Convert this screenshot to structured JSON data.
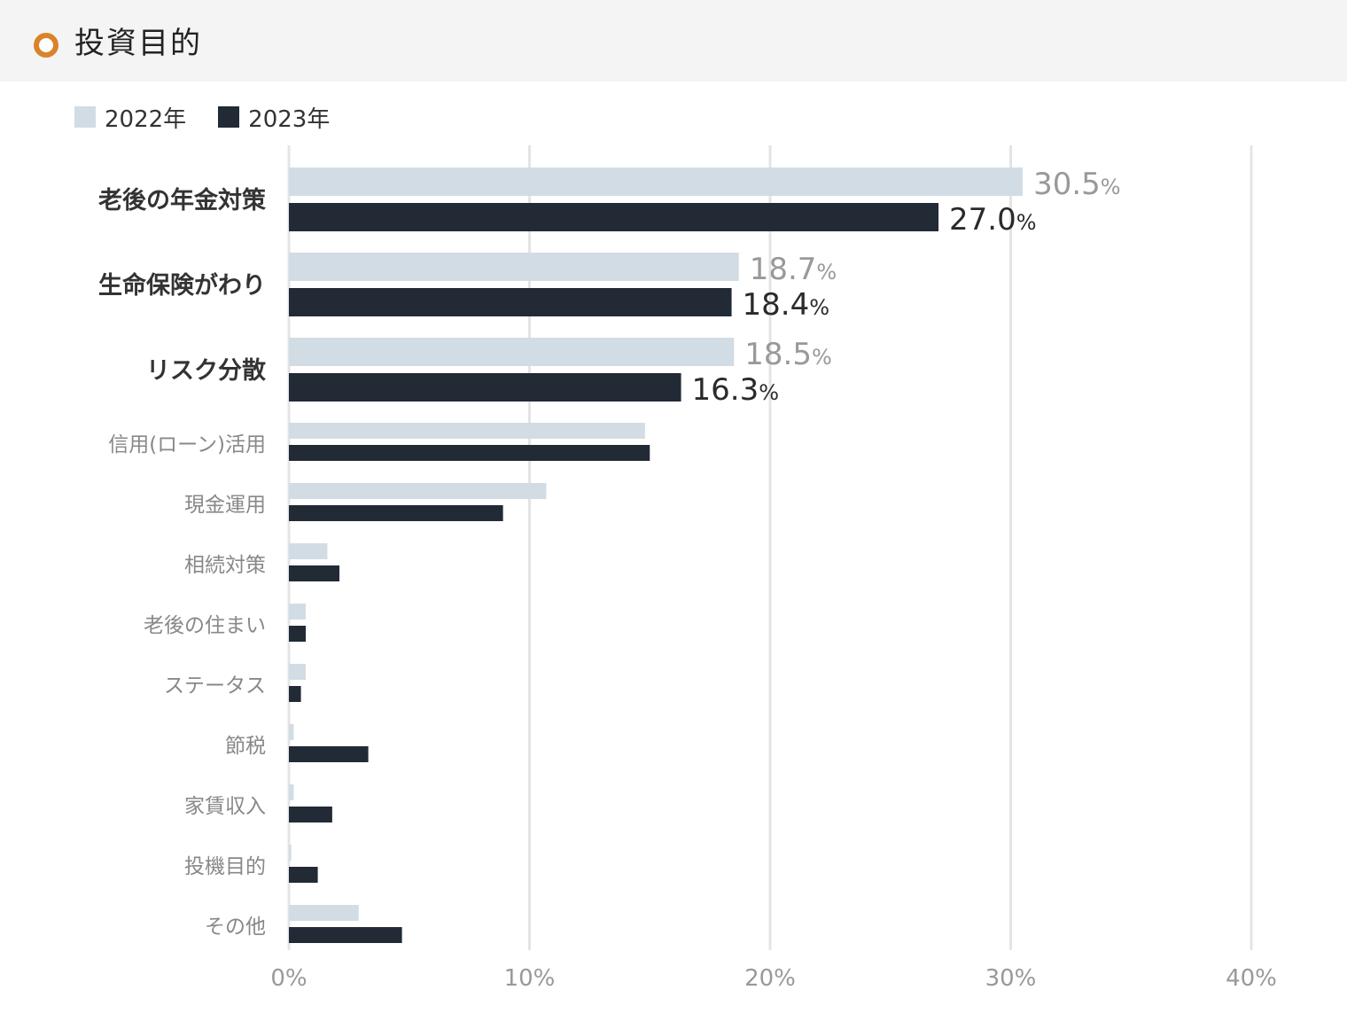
{
  "header": {
    "title": "投資目的",
    "icon": "circle-outline-icon"
  },
  "colors": {
    "accent": "#d9832b",
    "y2022": "#d2dce4",
    "y2023": "#212a35",
    "grid": "#e4e4e4",
    "label_muted": "#888888",
    "label_bold": "#333333"
  },
  "chart_data": {
    "type": "bar",
    "orientation": "horizontal",
    "xlim": [
      0,
      40
    ],
    "x_ticks": [
      "0%",
      "10%",
      "20%",
      "30%",
      "40%"
    ],
    "grid": true,
    "legend_position": "top-left",
    "categories": [
      "老後の年金対策",
      "生命保険がわり",
      "リスク分散",
      "信用(ローン)活用",
      "現金運用",
      "相続対策",
      "老後の住まい",
      "ステータス",
      "節税",
      "家賃収入",
      "投機目的",
      "その他"
    ],
    "highlighted": [
      true,
      true,
      true,
      false,
      false,
      false,
      false,
      false,
      false,
      false,
      false,
      false
    ],
    "series": [
      {
        "name": "2022年",
        "color": "#d2dce4",
        "values": [
          30.5,
          18.7,
          18.5,
          14.8,
          10.7,
          1.6,
          0.7,
          0.7,
          0.2,
          0.2,
          0.1,
          2.9
        ]
      },
      {
        "name": "2023年",
        "color": "#212a35",
        "values": [
          27.0,
          18.4,
          16.3,
          15.0,
          8.9,
          2.1,
          0.7,
          0.5,
          3.3,
          1.8,
          1.2,
          4.7
        ]
      }
    ],
    "data_labels": [
      [
        "30.5",
        "27.0"
      ],
      [
        "18.7",
        "18.4"
      ],
      [
        "18.5",
        "16.3"
      ]
    ],
    "data_label_unit": "%"
  }
}
